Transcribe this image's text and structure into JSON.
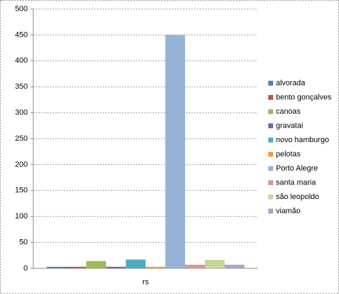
{
  "chart_data": {
    "type": "bar",
    "categories": [
      "rs"
    ],
    "series": [
      {
        "name": "alvorada",
        "color": "#4f81bd",
        "values": [
          3
        ]
      },
      {
        "name": "bento gonçalves",
        "color": "#c0504d",
        "values": [
          3
        ]
      },
      {
        "name": "canoas",
        "color": "#9bbb59",
        "values": [
          14
        ]
      },
      {
        "name": "gravatai",
        "color": "#8064a2",
        "values": [
          3
        ]
      },
      {
        "name": "novo hamburgo",
        "color": "#4bacc6",
        "values": [
          17
        ]
      },
      {
        "name": "pelotas",
        "color": "#f79646",
        "values": [
          3
        ]
      },
      {
        "name": "Porto Alegre",
        "color": "#95b3d7",
        "values": [
          450
        ]
      },
      {
        "name": "santa maria",
        "color": "#da9694",
        "values": [
          7
        ]
      },
      {
        "name": "são leopoldo",
        "color": "#c3d69b",
        "values": [
          16
        ]
      },
      {
        "name": "viamão",
        "color": "#b2a2c7",
        "values": [
          7
        ]
      }
    ],
    "ylim": [
      0,
      500
    ],
    "yticks": [
      0,
      50,
      100,
      150,
      200,
      250,
      300,
      350,
      400,
      450,
      500
    ],
    "grid": true,
    "legend": "right"
  }
}
